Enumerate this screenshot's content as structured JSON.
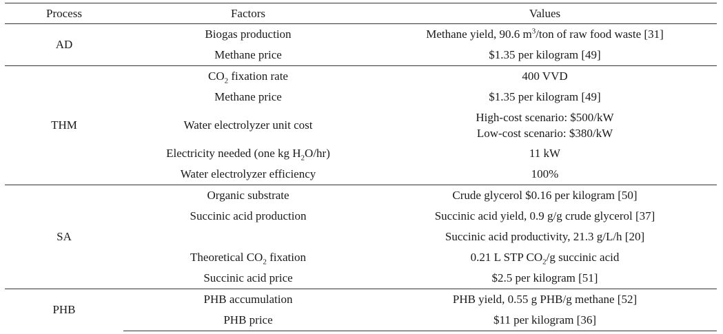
{
  "table": {
    "headers": [
      "Process",
      "Factors",
      "Values"
    ],
    "groups": [
      {
        "process": "AD",
        "rows": [
          {
            "factor": "Biogas production",
            "value": [
              "Methane yield, 90.6 m",
              "3",
              "/ton of raw food waste [31]"
            ]
          },
          {
            "factor": "Methane price",
            "value": "$1.35 per kilogram [49]"
          }
        ]
      },
      {
        "process": "THM",
        "rows": [
          {
            "factor": [
              "CO",
              "2",
              " fixation rate"
            ],
            "value": "400 VVD"
          },
          {
            "factor": "Methane price",
            "value": "$1.35 per kilogram [49]"
          },
          {
            "factor": "Water electrolyzer unit cost",
            "value_lines": [
              "High-cost scenario: $500/kW",
              "Low-cost scenario: $380/kW"
            ]
          },
          {
            "factor": [
              "Electricity needed (one kg H",
              "2",
              "O/hr)"
            ],
            "value": "11 kW"
          },
          {
            "factor": "Water electrolyzer efficiency",
            "value": "100%"
          }
        ]
      },
      {
        "process": "SA",
        "rows": [
          {
            "factor": "Organic substrate",
            "value": "Crude glycerol $0.16 per kilogram [50]"
          },
          {
            "factor": "Succinic acid production",
            "value": "Succinic acid yield, 0.9 g/g crude glycerol [37]"
          },
          {
            "factor": "",
            "value": "Succinic acid productivity, 21.3 g/L/h [20]"
          },
          {
            "factor": [
              "Theoretical CO",
              "2",
              " fixation"
            ],
            "value": [
              "0.21 L STP CO",
              "2",
              "/g succinic acid"
            ]
          },
          {
            "factor": "Succinic acid price",
            "value": "$2.5 per kilogram [51]"
          }
        ]
      },
      {
        "process": "PHB",
        "rows": [
          {
            "factor": "PHB accumulation",
            "value": "PHB yield, 0.55 g PHB/g methane [52]"
          },
          {
            "factor": "PHB price",
            "value": "$11 per kilogram [36]"
          }
        ]
      }
    ]
  }
}
